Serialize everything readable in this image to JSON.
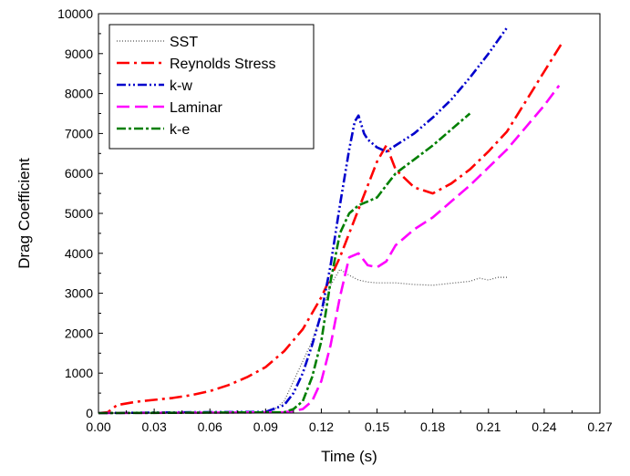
{
  "chart_data": {
    "type": "line",
    "xlabel": "Time (s)",
    "ylabel": "Drag Coefficient",
    "xlim": [
      0.0,
      0.27
    ],
    "ylim": [
      0,
      10000
    ],
    "xticks": [
      "0.00",
      "0.03",
      "0.06",
      "0.09",
      "0.12",
      "0.15",
      "0.18",
      "0.21",
      "0.24",
      "0.27"
    ],
    "yticks": [
      "0",
      "1000",
      "2000",
      "3000",
      "4000",
      "5000",
      "6000",
      "7000",
      "8000",
      "9000",
      "10000"
    ],
    "legend_position": "top-left",
    "grid": false,
    "series": [
      {
        "name": "SST",
        "color": "#555555",
        "dash": "1,2",
        "x": [
          0.0,
          0.05,
          0.09,
          0.095,
          0.1,
          0.105,
          0.11,
          0.115,
          0.12,
          0.125,
          0.13,
          0.135,
          0.14,
          0.145,
          0.15,
          0.16,
          0.17,
          0.18,
          0.19,
          0.2,
          0.205,
          0.21,
          0.215,
          0.22
        ],
        "y": [
          0,
          20,
          30,
          100,
          300,
          800,
          1300,
          1800,
          2500,
          3200,
          3600,
          3450,
          3330,
          3280,
          3260,
          3260,
          3220,
          3200,
          3250,
          3300,
          3380,
          3330,
          3400,
          3400
        ]
      },
      {
        "name": "Reynolds Stress",
        "color": "#ff0000",
        "dash": "14,5,3,5",
        "x": [
          0.0,
          0.005,
          0.01,
          0.02,
          0.03,
          0.04,
          0.05,
          0.06,
          0.07,
          0.08,
          0.09,
          0.1,
          0.11,
          0.12,
          0.13,
          0.14,
          0.15,
          0.155,
          0.16,
          0.17,
          0.18,
          0.19,
          0.2,
          0.21,
          0.22,
          0.23,
          0.24,
          0.25
        ],
        "y": [
          0,
          20,
          200,
          280,
          330,
          380,
          450,
          550,
          700,
          900,
          1150,
          1550,
          2100,
          2900,
          3900,
          5100,
          6300,
          6700,
          6100,
          5650,
          5500,
          5750,
          6100,
          6550,
          7050,
          7800,
          8550,
          9300
        ]
      },
      {
        "name": "k-w",
        "color": "#0000cc",
        "dash": "10,3,2,3,2,3",
        "x": [
          0.0,
          0.05,
          0.09,
          0.1,
          0.105,
          0.11,
          0.115,
          0.12,
          0.125,
          0.13,
          0.135,
          0.138,
          0.14,
          0.143,
          0.145,
          0.15,
          0.155,
          0.16,
          0.17,
          0.18,
          0.19,
          0.2,
          0.21,
          0.22
        ],
        "y": [
          0,
          20,
          30,
          200,
          500,
          1000,
          1700,
          2500,
          3700,
          5200,
          6600,
          7300,
          7450,
          7000,
          6850,
          6650,
          6550,
          6700,
          7000,
          7400,
          7850,
          8400,
          9000,
          9650
        ]
      },
      {
        "name": "Laminar",
        "color": "#ff00ff",
        "dash": "14,6",
        "x": [
          0.0,
          0.05,
          0.1,
          0.105,
          0.11,
          0.115,
          0.12,
          0.125,
          0.13,
          0.135,
          0.14,
          0.145,
          0.15,
          0.155,
          0.16,
          0.17,
          0.18,
          0.19,
          0.2,
          0.21,
          0.22,
          0.23,
          0.24,
          0.248
        ],
        "y": [
          0,
          10,
          20,
          50,
          100,
          300,
          800,
          1700,
          2900,
          3900,
          4000,
          3700,
          3650,
          3800,
          4200,
          4600,
          4900,
          5300,
          5700,
          6150,
          6600,
          7150,
          7700,
          8200
        ]
      },
      {
        "name": "k-e",
        "color": "#007f00",
        "dash": "10,3,3,3",
        "x": [
          0.0,
          0.05,
          0.1,
          0.105,
          0.11,
          0.115,
          0.12,
          0.125,
          0.13,
          0.135,
          0.14,
          0.145,
          0.15,
          0.155,
          0.16,
          0.17,
          0.18,
          0.19,
          0.2
        ],
        "y": [
          0,
          10,
          20,
          100,
          300,
          900,
          1800,
          3300,
          4500,
          5000,
          5200,
          5300,
          5400,
          5700,
          6000,
          6350,
          6700,
          7100,
          7500
        ]
      }
    ]
  }
}
